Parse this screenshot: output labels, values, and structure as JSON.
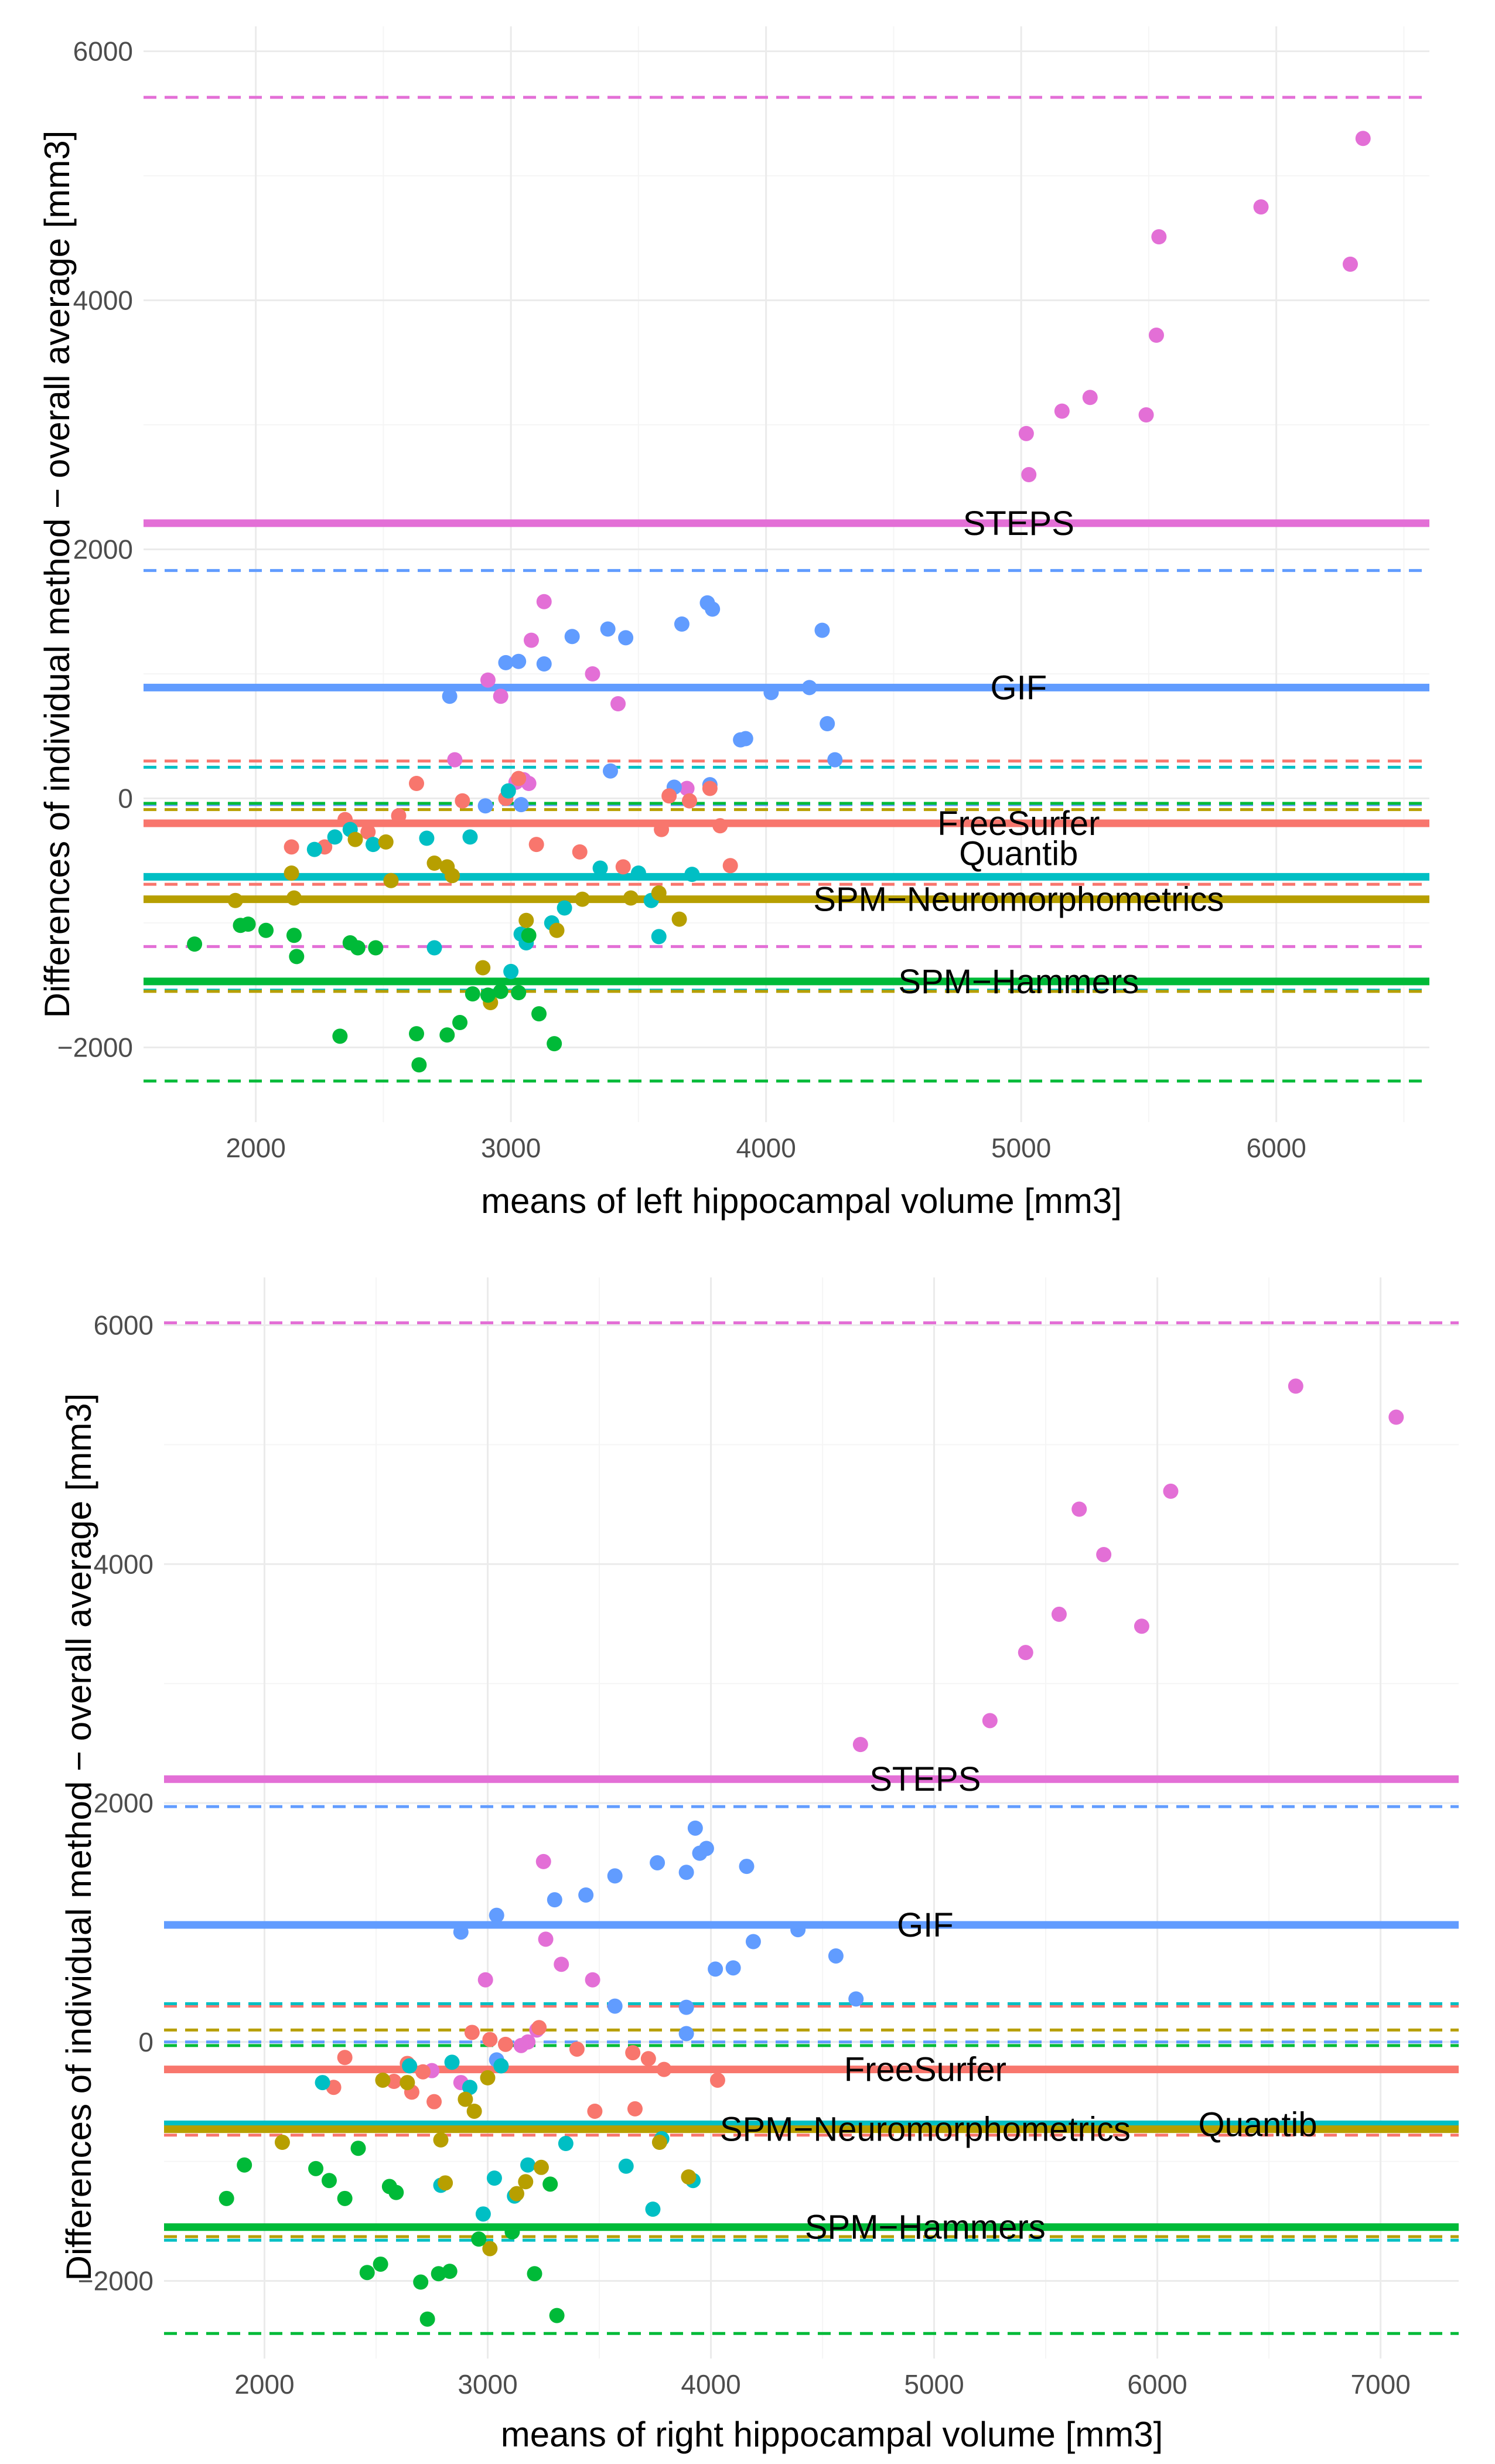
{
  "chart_data": [
    {
      "type": "scatter",
      "title": "",
      "xlabel": "means of left hippocampal volume [mm3]",
      "ylabel": "Differences of individual method − overall average [mm3]",
      "xlim": [
        1560,
        6600
      ],
      "ylim": [
        -2600,
        6200
      ],
      "x_ticks": [
        2000,
        3000,
        4000,
        5000,
        6000
      ],
      "y_ticks": [
        -2000,
        0,
        2000,
        4000,
        6000
      ],
      "x_tick_labels": [
        "2000",
        "3000",
        "4000",
        "5000",
        "6000"
      ],
      "y_tick_labels": [
        "−2000",
        "0",
        "2000",
        "4000",
        "6000"
      ],
      "label_x": 4990,
      "series": [
        {
          "name": "STEPS",
          "color": "#E36FD6",
          "mean": 2210,
          "upper": 5630,
          "lower": -1190,
          "label": "STEPS",
          "label_offset": 0,
          "points": [
            [
              5020,
              2930
            ],
            [
              5030,
              2600
            ],
            [
              5160,
              3110
            ],
            [
              5270,
              3220
            ],
            [
              5490,
              3080
            ],
            [
              5530,
              3720
            ],
            [
              5540,
              4510
            ],
            [
              5940,
              4750
            ],
            [
              6290,
              4290
            ],
            [
              6340,
              5300
            ],
            [
              3020,
              130
            ],
            [
              3050,
              150
            ],
            [
              3070,
              120
            ],
            [
              3130,
              1580
            ],
            [
              3080,
              1270
            ],
            [
              3320,
              1000
            ],
            [
              2960,
              820
            ],
            [
              2910,
              950
            ],
            [
              2780,
              310
            ],
            [
              3420,
              760
            ],
            [
              3690,
              80
            ]
          ]
        },
        {
          "name": "GIF",
          "color": "#619CFF",
          "mean": 890,
          "upper": 1830,
          "lower": -50,
          "label": "GIF",
          "label_offset": 0,
          "points": [
            [
              2760,
              820
            ],
            [
              2980,
              1090
            ],
            [
              3030,
              1100
            ],
            [
              3130,
              1080
            ],
            [
              3240,
              1300
            ],
            [
              3380,
              1360
            ],
            [
              3450,
              1290
            ],
            [
              3670,
              1400
            ],
            [
              3770,
              1570
            ],
            [
              3790,
              1520
            ],
            [
              3900,
              470
            ],
            [
              3920,
              480
            ],
            [
              4020,
              850
            ],
            [
              4170,
              890
            ],
            [
              4220,
              1350
            ],
            [
              4240,
              600
            ],
            [
              4270,
              310
            ],
            [
              3390,
              220
            ],
            [
              3780,
              110
            ],
            [
              3640,
              90
            ],
            [
              2900,
              -60
            ],
            [
              3040,
              -50
            ]
          ]
        },
        {
          "name": "FreeSurfer",
          "color": "#F8766D",
          "mean": -200,
          "upper": 300,
          "lower": -690,
          "label": "FreeSurfer",
          "label_offset": 0,
          "points": [
            [
              2140,
              -390
            ],
            [
              2270,
              -390
            ],
            [
              2350,
              -170
            ],
            [
              2440,
              -270
            ],
            [
              2560,
              -140
            ],
            [
              2630,
              120
            ],
            [
              2810,
              -20
            ],
            [
              2980,
              0
            ],
            [
              3030,
              160
            ],
            [
              3100,
              -370
            ],
            [
              3270,
              -430
            ],
            [
              3440,
              -550
            ],
            [
              3590,
              -250
            ],
            [
              3620,
              20
            ],
            [
              3700,
              -20
            ],
            [
              3780,
              80
            ],
            [
              3820,
              -220
            ],
            [
              3860,
              -540
            ]
          ]
        },
        {
          "name": "Quantib",
          "color": "#00BFC4",
          "mean": -630,
          "upper": 250,
          "lower": -1540,
          "label": "Quantib",
          "label_offset": -40,
          "points": [
            [
              2230,
              -410
            ],
            [
              2310,
              -310
            ],
            [
              2370,
              -250
            ],
            [
              2460,
              -370
            ],
            [
              2670,
              -320
            ],
            [
              2700,
              -1200
            ],
            [
              2840,
              -310
            ],
            [
              2990,
              60
            ],
            [
              3040,
              -1090
            ],
            [
              3060,
              -1160
            ],
            [
              3160,
              -1000
            ],
            [
              3210,
              -880
            ],
            [
              3350,
              -560
            ],
            [
              3500,
              -600
            ],
            [
              3550,
              -820
            ],
            [
              3580,
              -1110
            ],
            [
              3710,
              -610
            ],
            [
              3000,
              -1390
            ]
          ]
        },
        {
          "name": "SPM−Neuromorphometrics",
          "color": "#B79F00",
          "mean": -810,
          "upper": -90,
          "lower": -1550,
          "label": "SPM−Neuromorphometrics",
          "label_offset": 0,
          "points": [
            [
              1920,
              -820
            ],
            [
              2140,
              -600
            ],
            [
              2150,
              -800
            ],
            [
              2390,
              -330
            ],
            [
              2510,
              -350
            ],
            [
              2530,
              -660
            ],
            [
              2700,
              -520
            ],
            [
              2750,
              -550
            ],
            [
              2770,
              -620
            ],
            [
              2890,
              -1360
            ],
            [
              2920,
              -1640
            ],
            [
              3060,
              -980
            ],
            [
              3180,
              -1060
            ],
            [
              3280,
              -810
            ],
            [
              3470,
              -800
            ],
            [
              3580,
              -760
            ],
            [
              3660,
              -970
            ]
          ]
        },
        {
          "name": "SPM−Hammers",
          "color": "#00BA38",
          "mean": -1470,
          "upper": -40,
          "lower": -2270,
          "label": "SPM−Hammers",
          "label_offset": 0,
          "points": [
            [
              1760,
              -1170
            ],
            [
              1940,
              -1020
            ],
            [
              1970,
              -1010
            ],
            [
              2040,
              -1060
            ],
            [
              2150,
              -1100
            ],
            [
              2160,
              -1270
            ],
            [
              2330,
              -1910
            ],
            [
              2370,
              -1160
            ],
            [
              2400,
              -1200
            ],
            [
              2470,
              -1200
            ],
            [
              2630,
              -1890
            ],
            [
              2640,
              -2140
            ],
            [
              2750,
              -1900
            ],
            [
              2800,
              -1800
            ],
            [
              2850,
              -1570
            ],
            [
              2910,
              -1580
            ],
            [
              2960,
              -1550
            ],
            [
              3030,
              -1560
            ],
            [
              3070,
              -1100
            ],
            [
              3110,
              -1730
            ],
            [
              3170,
              -1970
            ]
          ]
        }
      ]
    },
    {
      "type": "scatter",
      "title": "",
      "xlabel": "means of right hippocampal volume [mm3]",
      "ylabel": "Differences of individual method − overall average [mm3]",
      "xlim": [
        1550,
        7350
      ],
      "ylim": [
        -2650,
        6400
      ],
      "x_ticks": [
        2000,
        3000,
        4000,
        5000,
        6000,
        7000
      ],
      "y_ticks": [
        -2000,
        0,
        2000,
        4000,
        6000
      ],
      "x_tick_labels": [
        "2000",
        "3000",
        "4000",
        "5000",
        "6000",
        "7000"
      ],
      "y_tick_labels": [
        "−2000",
        "0",
        "2000",
        "4000",
        "6000"
      ],
      "label_x": 4960,
      "series": [
        {
          "name": "STEPS",
          "color": "#E36FD6",
          "mean": 2200,
          "upper": 6020,
          "lower": -1630,
          "label": "STEPS",
          "label_offset": 0,
          "points": [
            [
              4670,
              2490
            ],
            [
              5250,
              2690
            ],
            [
              5410,
              3260
            ],
            [
              5560,
              3580
            ],
            [
              5650,
              4460
            ],
            [
              5760,
              4080
            ],
            [
              5930,
              3480
            ],
            [
              6060,
              4610
            ],
            [
              6620,
              5490
            ],
            [
              7070,
              5230
            ],
            [
              2990,
              520
            ],
            [
              3250,
              1510
            ],
            [
              3260,
              860
            ],
            [
              3330,
              650
            ],
            [
              3470,
              520
            ],
            [
              3180,
              0
            ],
            [
              3220,
              100
            ],
            [
              3150,
              -30
            ],
            [
              2880,
              -340
            ],
            [
              2750,
              -240
            ]
          ]
        },
        {
          "name": "GIF",
          "color": "#619CFF",
          "mean": 980,
          "upper": 1970,
          "lower": 0,
          "label": "GIF",
          "label_offset": 0,
          "points": [
            [
              2880,
              920
            ],
            [
              3040,
              1060
            ],
            [
              3300,
              1190
            ],
            [
              3440,
              1230
            ],
            [
              3570,
              1390
            ],
            [
              3760,
              1500
            ],
            [
              3890,
              1420
            ],
            [
              3930,
              1790
            ],
            [
              3950,
              1580
            ],
            [
              3980,
              1620
            ],
            [
              4020,
              610
            ],
            [
              4100,
              620
            ],
            [
              4160,
              1470
            ],
            [
              4190,
              840
            ],
            [
              4390,
              940
            ],
            [
              4560,
              720
            ],
            [
              4650,
              360
            ],
            [
              3890,
              290
            ],
            [
              3890,
              70
            ],
            [
              3570,
              300
            ],
            [
              3040,
              -150
            ]
          ]
        },
        {
          "name": "FreeSurfer",
          "color": "#F8766D",
          "mean": -230,
          "upper": 300,
          "lower": -780,
          "label": "FreeSurfer",
          "label_offset": 0,
          "points": [
            [
              2310,
              -380
            ],
            [
              2360,
              -130
            ],
            [
              2580,
              -330
            ],
            [
              2640,
              -180
            ],
            [
              2660,
              -420
            ],
            [
              2710,
              -250
            ],
            [
              2760,
              -500
            ],
            [
              2930,
              80
            ],
            [
              3010,
              20
            ],
            [
              3080,
              -20
            ],
            [
              3230,
              120
            ],
            [
              3400,
              -60
            ],
            [
              3480,
              -580
            ],
            [
              3650,
              -90
            ],
            [
              3660,
              -560
            ],
            [
              3720,
              -140
            ],
            [
              3790,
              -230
            ],
            [
              4030,
              -320
            ]
          ]
        },
        {
          "name": "Quantib",
          "color": "#00BFC4",
          "mean": -690,
          "upper": 320,
          "lower": -1660,
          "label": "Quantib",
          "label_offset": 0,
          "label_x": 6450,
          "points": [
            [
              2260,
              -340
            ],
            [
              2650,
              -200
            ],
            [
              2790,
              -1200
            ],
            [
              2840,
              -170
            ],
            [
              2920,
              -380
            ],
            [
              2980,
              -1440
            ],
            [
              3030,
              -1140
            ],
            [
              3120,
              -1290
            ],
            [
              3180,
              -1030
            ],
            [
              3350,
              -850
            ],
            [
              3620,
              -1040
            ],
            [
              3740,
              -1400
            ],
            [
              3780,
              -810
            ],
            [
              3920,
              -1160
            ],
            [
              3060,
              -200
            ]
          ]
        },
        {
          "name": "SPM−Neuromorphometrics",
          "color": "#B79F00",
          "mean": -730,
          "upper": 100,
          "lower": -1630,
          "label": "SPM−Neuromorphometrics",
          "label_offset": 0,
          "points": [
            [
              2080,
              -840
            ],
            [
              2530,
              -320
            ],
            [
              2640,
              -340
            ],
            [
              2790,
              -820
            ],
            [
              2810,
              -1180
            ],
            [
              2940,
              -580
            ],
            [
              3010,
              -1730
            ],
            [
              3130,
              -1270
            ],
            [
              3170,
              -1170
            ],
            [
              3240,
              -1050
            ],
            [
              3000,
              -300
            ],
            [
              3770,
              -840
            ],
            [
              3900,
              -1130
            ],
            [
              2900,
              -480
            ]
          ]
        },
        {
          "name": "SPM−Hammers",
          "color": "#00BA38",
          "mean": -1550,
          "upper": -30,
          "lower": -2440,
          "label": "SPM−Hammers",
          "label_offset": 0,
          "points": [
            [
              1830,
              -1310
            ],
            [
              1910,
              -1030
            ],
            [
              2230,
              -1060
            ],
            [
              2290,
              -1160
            ],
            [
              2360,
              -1310
            ],
            [
              2420,
              -890
            ],
            [
              2460,
              -1930
            ],
            [
              2520,
              -1860
            ],
            [
              2560,
              -1210
            ],
            [
              2590,
              -1260
            ],
            [
              2700,
              -2010
            ],
            [
              2730,
              -2320
            ],
            [
              2780,
              -1940
            ],
            [
              2830,
              -1920
            ],
            [
              2960,
              -1650
            ],
            [
              3110,
              -1590
            ],
            [
              3210,
              -1940
            ],
            [
              3280,
              -1190
            ],
            [
              3310,
              -2290
            ]
          ]
        }
      ]
    }
  ]
}
